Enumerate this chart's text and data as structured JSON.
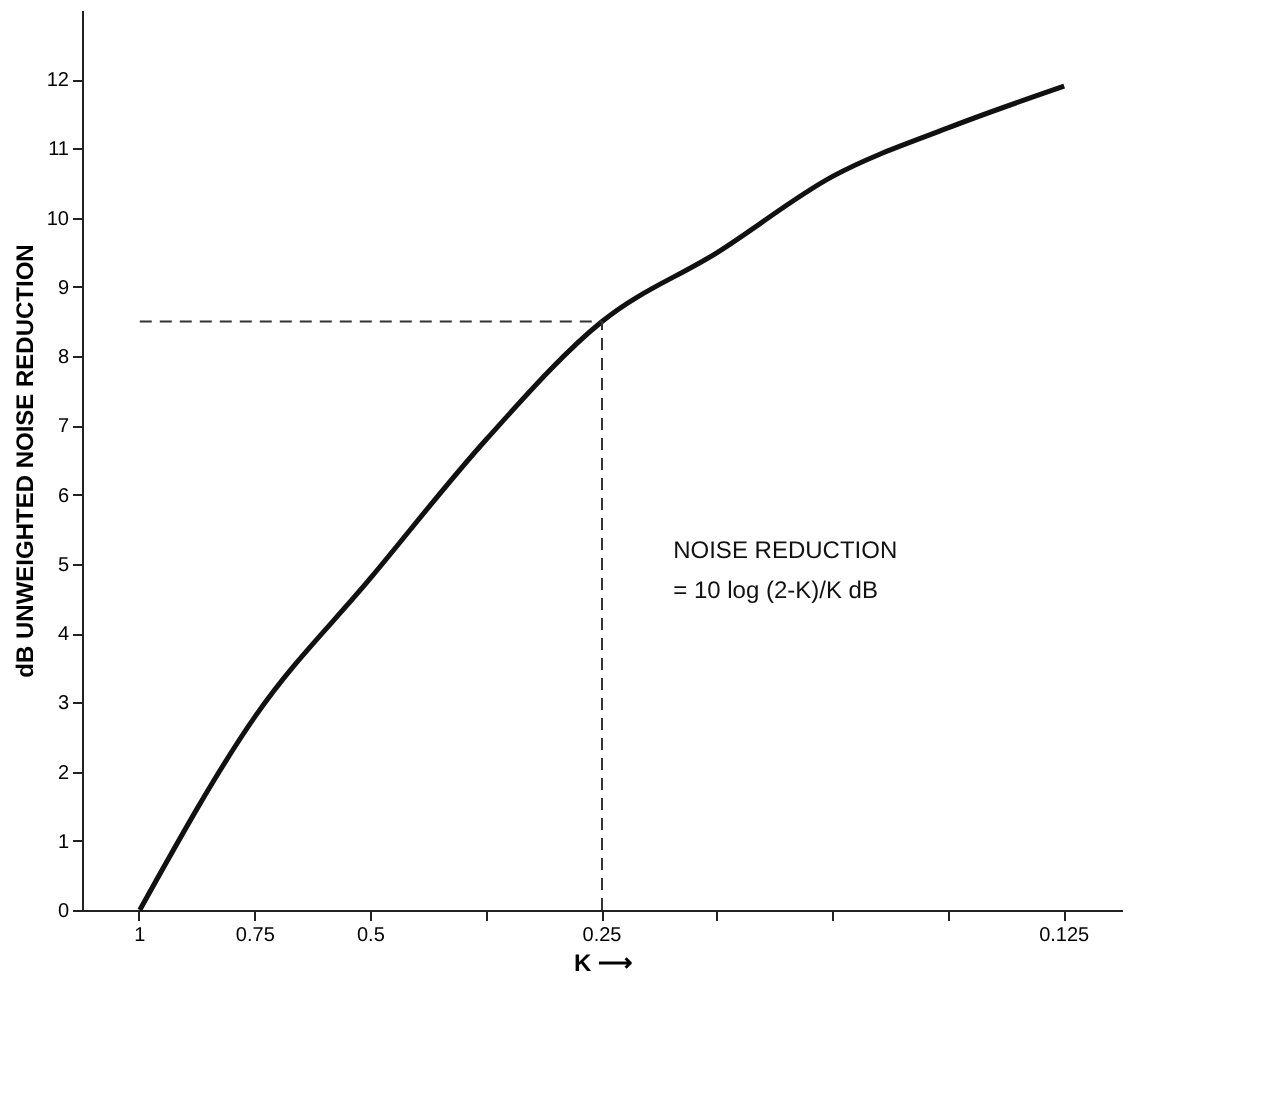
{
  "chart_data": {
    "type": "line",
    "xlabel": "K ⟶",
    "ylabel": "dB UNWEIGHTED NOISE REDUCTION",
    "categories": [
      "1",
      "0.75",
      "0.5",
      null,
      "0.25",
      null,
      null,
      null,
      "0.125"
    ],
    "series": [
      {
        "color": "#111111",
        "values": [
          0,
          2.8,
          4.8,
          6.8,
          8.5,
          9.5,
          10.6,
          11.3,
          11.9
        ]
      }
    ],
    "ylim": [
      0,
      13
    ],
    "yticks": [
      0,
      1,
      2,
      3,
      4,
      5,
      6,
      7,
      8,
      9,
      10,
      11,
      12
    ],
    "ref_lines": [
      {
        "axis": "x",
        "value": "0.25",
        "color": "#333333",
        "line_style": "dashed"
      },
      {
        "axis": "y",
        "value": 8.5,
        "color": "#333333",
        "line_style": "dashed"
      }
    ],
    "annotations": [
      "NOISE REDUCTION",
      "= 10 log (2-K)/K dB"
    ],
    "grid": false,
    "marker": "none",
    "line_style": "solid"
  }
}
